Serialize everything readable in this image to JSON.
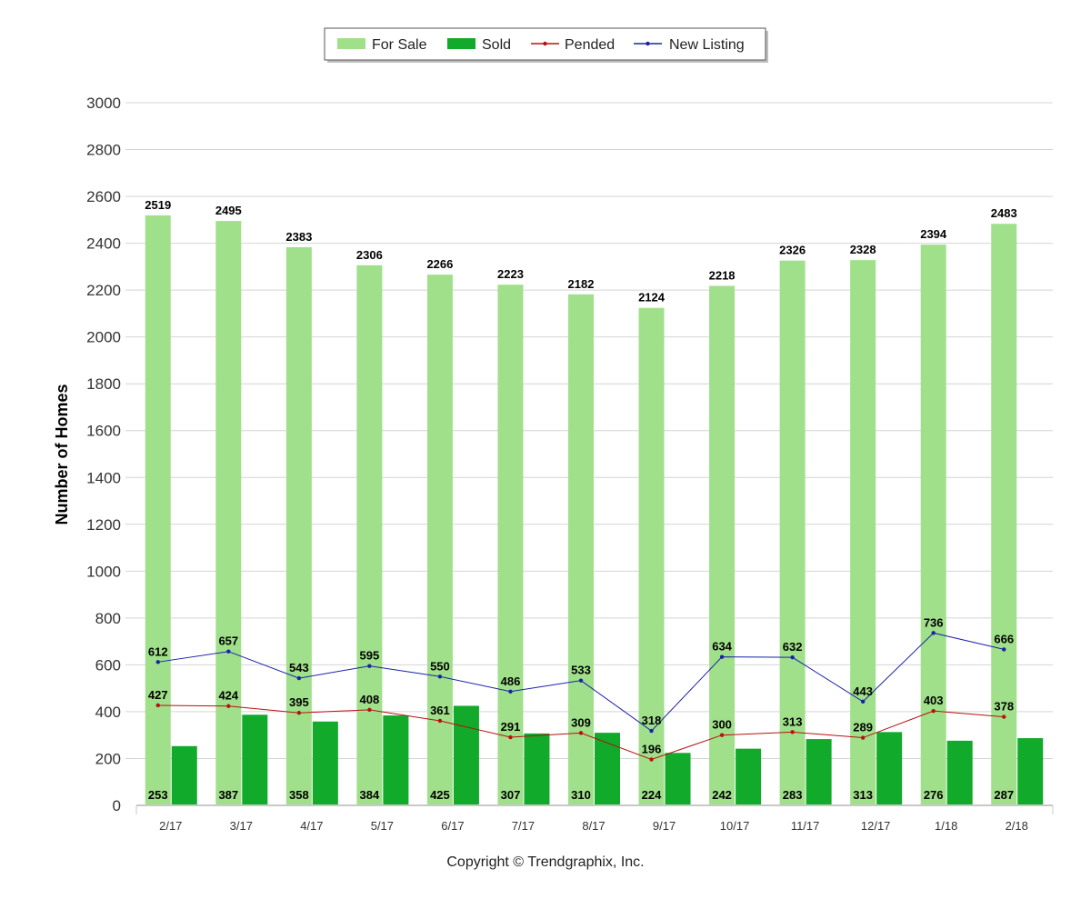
{
  "chart_data": {
    "type": "bar",
    "categories": [
      "2/17",
      "3/17",
      "4/17",
      "5/17",
      "6/17",
      "7/17",
      "8/17",
      "9/17",
      "10/17",
      "11/17",
      "12/17",
      "1/18",
      "2/18"
    ],
    "series": [
      {
        "name": "For Sale",
        "kind": "bar",
        "color": "#a0e08a",
        "values": [
          2519,
          2495,
          2383,
          2306,
          2266,
          2223,
          2182,
          2124,
          2218,
          2326,
          2328,
          2394,
          2483
        ]
      },
      {
        "name": "Sold",
        "kind": "bar",
        "color": "#11aa2a",
        "values": [
          253,
          387,
          358,
          384,
          425,
          307,
          310,
          224,
          242,
          283,
          313,
          276,
          287
        ]
      },
      {
        "name": "Pended",
        "kind": "line",
        "color": "#b81010",
        "values": [
          427,
          424,
          395,
          408,
          361,
          291,
          309,
          196,
          300,
          313,
          289,
          403,
          378
        ]
      },
      {
        "name": "New Listing",
        "kind": "line",
        "color": "#1a22a8",
        "values": [
          612,
          657,
          543,
          595,
          550,
          486,
          533,
          318,
          634,
          632,
          443,
          736,
          666
        ]
      }
    ],
    "ylabel": "Number of Homes",
    "ylim": [
      0,
      3000
    ],
    "yticks": [
      0,
      200,
      400,
      600,
      800,
      1000,
      1200,
      1400,
      1600,
      1800,
      2000,
      2200,
      2400,
      2600,
      2800,
      3000
    ],
    "grid": true,
    "legend": "top-center"
  },
  "footer": {
    "copyright": "Copyright © Trendgraphix, Inc."
  }
}
